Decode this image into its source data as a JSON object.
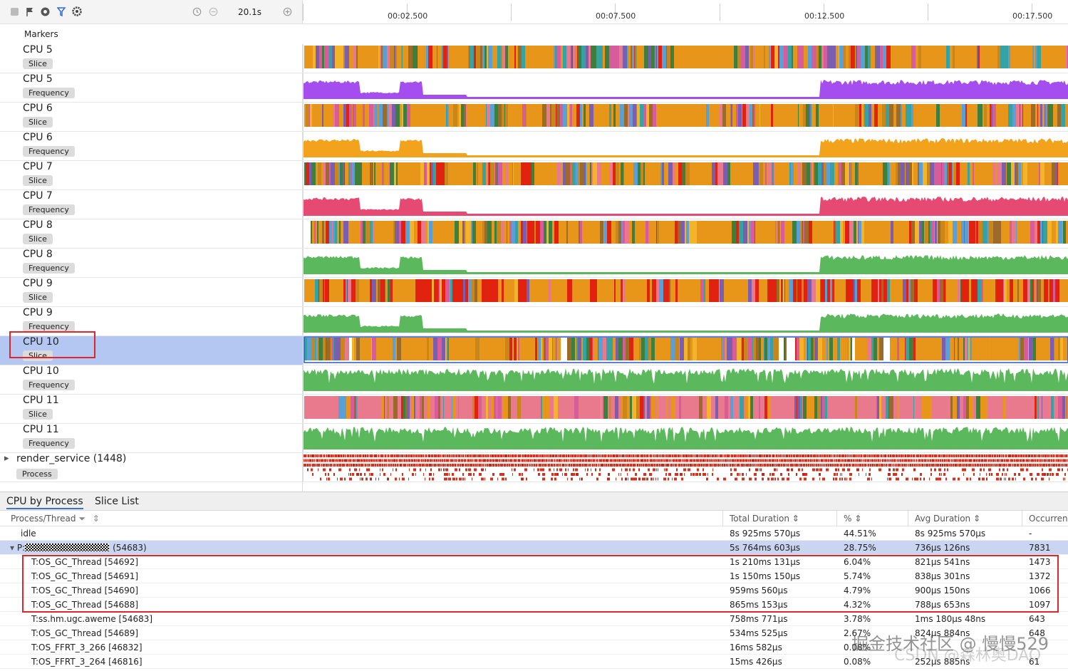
{
  "toolbar": {
    "icons": [
      "square-icon",
      "flag-icon",
      "target-icon",
      "filter-icon",
      "settings-icon",
      "history-icon",
      "zoom-out-icon",
      "zoom-in-icon"
    ],
    "zoom_value": "20.1s",
    "markers_label": "Markers"
  },
  "ruler": {
    "ticks": [
      "00:02.500",
      "00:07.500",
      "00:12.500",
      "00:17.500"
    ]
  },
  "colors": {
    "purple": "#a54ef0",
    "orange": "#f3a21c",
    "red_pink": "#e64a73",
    "green": "#5cb85c",
    "slice_orange": "#e8961a",
    "slice_red": "#e0220e",
    "slice_pink": "#e9798d",
    "highlight_box": "#e0262a",
    "selected_track": "#b4c7f3"
  },
  "tracks": [
    {
      "name": "CPU 5",
      "sub": "Slice",
      "kind": "slice"
    },
    {
      "name": "CPU 5",
      "sub": "Frequency",
      "kind": "freq",
      "color": "#a54ef0"
    },
    {
      "name": "CPU 6",
      "sub": "Slice",
      "kind": "slice"
    },
    {
      "name": "CPU 6",
      "sub": "Frequency",
      "kind": "freq",
      "color": "#f3a21c"
    },
    {
      "name": "CPU 7",
      "sub": "Slice",
      "kind": "slice"
    },
    {
      "name": "CPU 7",
      "sub": "Frequency",
      "kind": "freq",
      "color": "#e64a73"
    },
    {
      "name": "CPU 8",
      "sub": "Slice",
      "kind": "slice"
    },
    {
      "name": "CPU 8",
      "sub": "Frequency",
      "kind": "freq",
      "color": "#5cb85c"
    },
    {
      "name": "CPU 9",
      "sub": "Slice",
      "kind": "slice"
    },
    {
      "name": "CPU 9",
      "sub": "Frequency",
      "kind": "freq",
      "color": "#5cb85c"
    },
    {
      "name": "CPU 10",
      "sub": "Slice",
      "kind": "slice",
      "selected": true
    },
    {
      "name": "CPU 10",
      "sub": "Frequency",
      "kind": "freq2",
      "color": "#5cb85c"
    },
    {
      "name": "CPU 11",
      "sub": "Slice",
      "kind": "slice"
    },
    {
      "name": "CPU 11",
      "sub": "Frequency",
      "kind": "freq2",
      "color": "#5cb85c"
    },
    {
      "name": "render_service (1448)",
      "sub": "Process",
      "kind": "process"
    }
  ],
  "bottom": {
    "tabs": [
      "CPU by Process",
      "Slice List"
    ],
    "columns": [
      "Process/Thread",
      "Total Duration",
      "%",
      "Avg Duration",
      "Occurrences"
    ],
    "rows": [
      {
        "name": "idle",
        "total": "8s 925ms 570μs",
        "pct": "44.51%",
        "avg": "8s 925ms 570μs",
        "occ": "-",
        "indent": 0
      },
      {
        "name_prefix": "P:",
        "name_suffix": "(54683)",
        "total": "5s 764ms 603μs",
        "pct": "28.75%",
        "avg": "736μs 126ns",
        "occ": "7831",
        "indent": 0,
        "expanded": true,
        "hl": true
      },
      {
        "name": "T:OS_GC_Thread [54692]",
        "total": "1s 210ms 131μs",
        "pct": "6.04%",
        "avg": "821μs 541ns",
        "occ": "1473",
        "indent": 1
      },
      {
        "name": "T:OS_GC_Thread [54691]",
        "total": "1s 150ms 150μs",
        "pct": "5.74%",
        "avg": "838μs 301ns",
        "occ": "1372",
        "indent": 1
      },
      {
        "name": "T:OS_GC_Thread [54690]",
        "total": "959ms 560μs",
        "pct": "4.79%",
        "avg": "900μs 150ns",
        "occ": "1066",
        "indent": 1
      },
      {
        "name": "T:OS_GC_Thread [54688]",
        "total": "865ms 153μs",
        "pct": "4.32%",
        "avg": "788μs 653ns",
        "occ": "1097",
        "indent": 1
      },
      {
        "name": "T:ss.hm.ugc.aweme [54683]",
        "total": "758ms 771μs",
        "pct": "3.78%",
        "avg": "1ms 180μs 48ns",
        "occ": "643",
        "indent": 1
      },
      {
        "name": "T:OS_GC_Thread [54689]",
        "total": "534ms 525μs",
        "pct": "2.67%",
        "avg": "824μs 884ns",
        "occ": "648",
        "indent": 1
      },
      {
        "name": "T:OS_FFRT_3_266 [46832]",
        "total": "16ms 582μs",
        "pct": "0.08%",
        "avg": "",
        "occ": "",
        "indent": 1
      },
      {
        "name": "T:OS_FFRT_3_264 [46816]",
        "total": "15ms 426μs",
        "pct": "0.08%",
        "avg": "252μs 885ns",
        "occ": "61",
        "indent": 1
      }
    ]
  },
  "watermark": "掘金技术社区 @ 慢慢529",
  "watermark2": "CSDN @森林奥DAQ"
}
